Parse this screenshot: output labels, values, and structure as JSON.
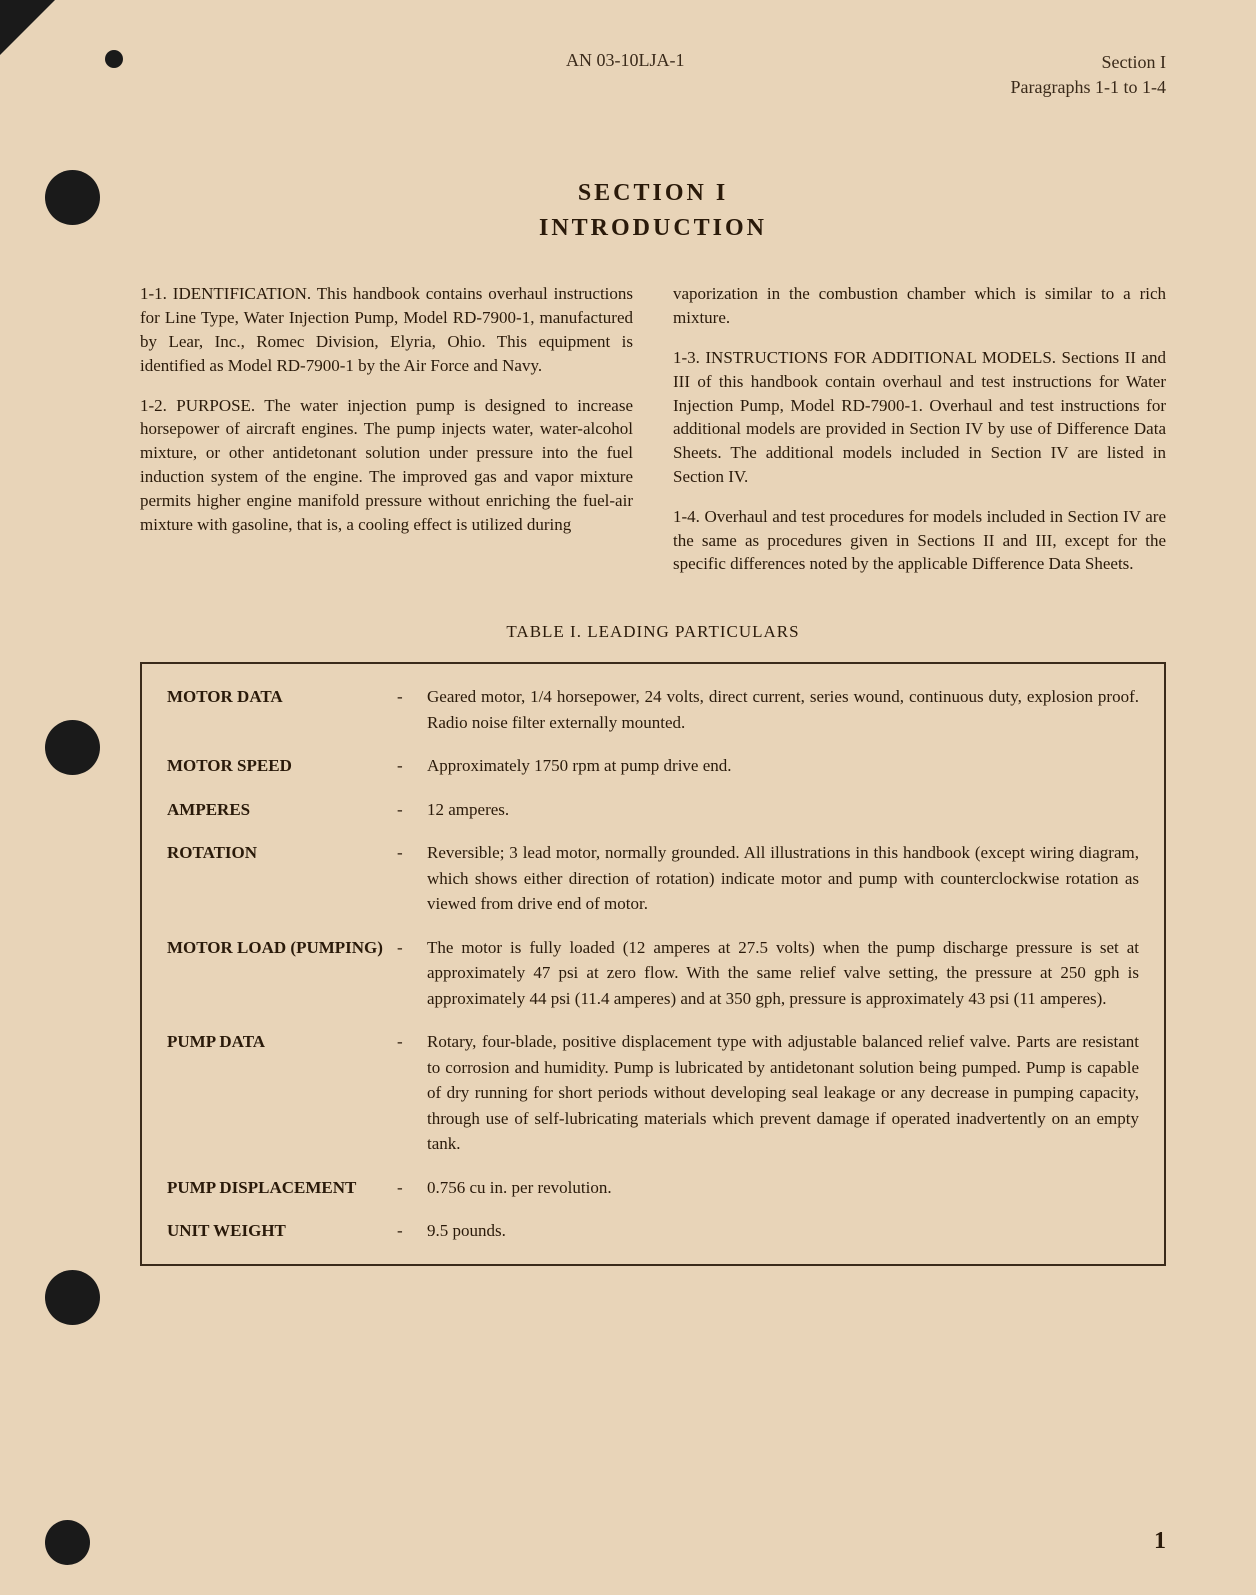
{
  "header": {
    "documentNumber": "AN 03-10LJA-1",
    "sectionLabel": "Section I",
    "paragraphRange": "Paragraphs 1-1 to 1-4"
  },
  "title": {
    "section": "SECTION I",
    "subtitle": "INTRODUCTION"
  },
  "paragraphs": {
    "p1_1": "1-1. IDENTIFICATION. This handbook contains overhaul instructions for Line Type, Water Injection Pump, Model RD-7900-1, manufactured by Lear, Inc., Romec Division, Elyria, Ohio. This equipment is identified as Model RD-7900-1 by the Air Force and Navy.",
    "p1_2": "1-2. PURPOSE. The water injection pump is designed to increase horsepower of aircraft engines. The pump injects water, water-alcohol mixture, or other antidetonant solution under pressure into the fuel induction system of the engine. The improved gas and vapor mixture permits higher engine manifold pressure without enriching the fuel-air mixture with gasoline, that is, a cooling effect is utilized during",
    "p1_2_cont": "vaporization in the combustion chamber which is similar to a rich mixture.",
    "p1_3": "1-3. INSTRUCTIONS FOR ADDITIONAL MODELS. Sections II and III of this handbook contain overhaul and test instructions for Water Injection Pump, Model RD-7900-1. Overhaul and test instructions for additional models are provided in Section IV by use of Difference Data Sheets. The additional models included in Section IV are listed in Section IV.",
    "p1_4": "1-4. Overhaul and test procedures for models included in Section IV are the same as procedures given in Sections II and III, except for the specific differences noted by the applicable Difference Data Sheets."
  },
  "table": {
    "title": "TABLE I. LEADING PARTICULARS",
    "rows": [
      {
        "label": "MOTOR DATA",
        "value": "Geared motor, 1/4 horsepower, 24 volts, direct current, series wound, continuous duty, explosion proof. Radio noise filter externally mounted."
      },
      {
        "label": "MOTOR SPEED",
        "value": "Approximately 1750 rpm at pump drive end."
      },
      {
        "label": "AMPERES",
        "value": "12 amperes."
      },
      {
        "label": "ROTATION",
        "value": "Reversible; 3 lead motor, normally grounded. All illustrations in this handbook (except wiring diagram, which shows either direction of rotation) indicate motor and pump with counterclockwise rotation as viewed from drive end of motor."
      },
      {
        "label": "MOTOR LOAD (PUMPING)",
        "value": "The motor is fully loaded (12 amperes at 27.5 volts) when the pump discharge pressure is set at approximately 47 psi at zero flow. With the same relief valve setting, the pressure at 250 gph is approximately 44 psi (11.4 amperes) and at 350 gph, pressure is approximately 43 psi (11 amperes)."
      },
      {
        "label": "PUMP DATA",
        "value": "Rotary, four-blade, positive displacement type with adjustable balanced relief valve. Parts are resistant to corrosion and humidity. Pump is lubricated by antidetonant solution being pumped. Pump is capable of dry running for short periods without developing seal leakage or any decrease in pumping capacity, through use of self-lubricating materials which prevent damage if operated inadvertently on an empty tank."
      },
      {
        "label": "PUMP DISPLACEMENT",
        "value": "0.756 cu in. per revolution."
      },
      {
        "label": "UNIT WEIGHT",
        "value": "9.5 pounds."
      }
    ]
  },
  "pageNumber": "1"
}
